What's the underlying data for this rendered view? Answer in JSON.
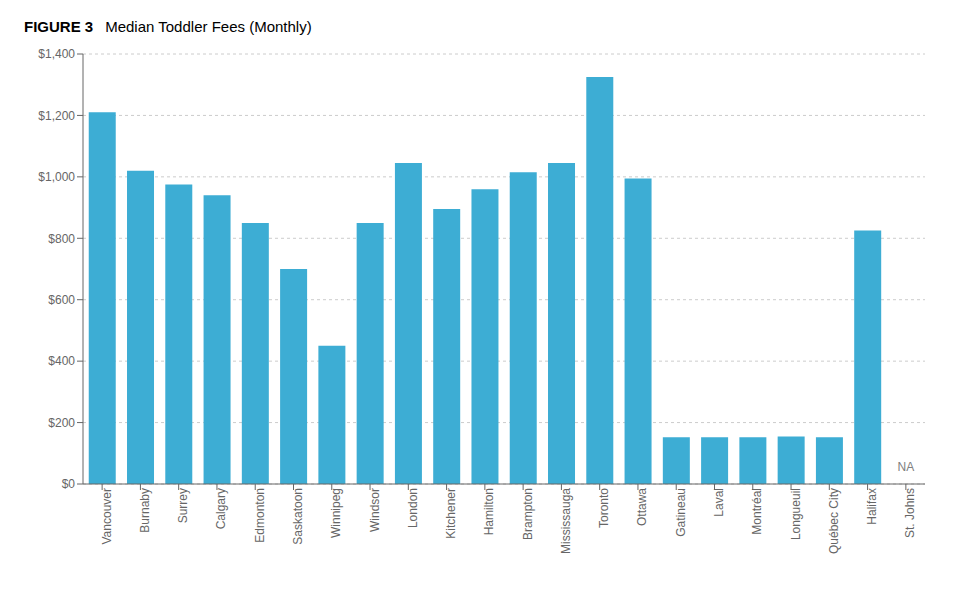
{
  "chart_data": {
    "type": "bar",
    "title": "FIGURE 3",
    "subtitle": "Median Toddler Fees (Monthly)",
    "categories": [
      "Vancouver",
      "Burnaby",
      "Surrey",
      "Calgary",
      "Edmonton",
      "Saskatoon",
      "Winnipeg",
      "Windsor",
      "London",
      "Kitchener",
      "Hamilton",
      "Brampton",
      "Mississauga",
      "Toronto",
      "Ottawa",
      "Gatineau",
      "Laval",
      "Montréal",
      "Longueuil",
      "Québec City",
      "Halifax",
      "St. Johns"
    ],
    "values": [
      1210,
      1020,
      975,
      940,
      850,
      700,
      450,
      850,
      1045,
      895,
      960,
      1015,
      1045,
      1325,
      995,
      152,
      152,
      152,
      155,
      152,
      825,
      null
    ],
    "color": "#3dadd4",
    "ylim": [
      0,
      1400
    ],
    "yticks": [
      {
        "value": 0,
        "label": "$0"
      },
      {
        "value": 200,
        "label": "$200"
      },
      {
        "value": 400,
        "label": "$400"
      },
      {
        "value": 600,
        "label": "$600"
      },
      {
        "value": 800,
        "label": "$800"
      },
      {
        "value": 1000,
        "label": "$1,000"
      },
      {
        "value": 1200,
        "label": "$1,200"
      },
      {
        "value": 1400,
        "label": "$1,400"
      }
    ],
    "grid": true,
    "annotations": [
      {
        "text": "NA",
        "x": "St. Johns",
        "y": 25
      }
    ]
  }
}
